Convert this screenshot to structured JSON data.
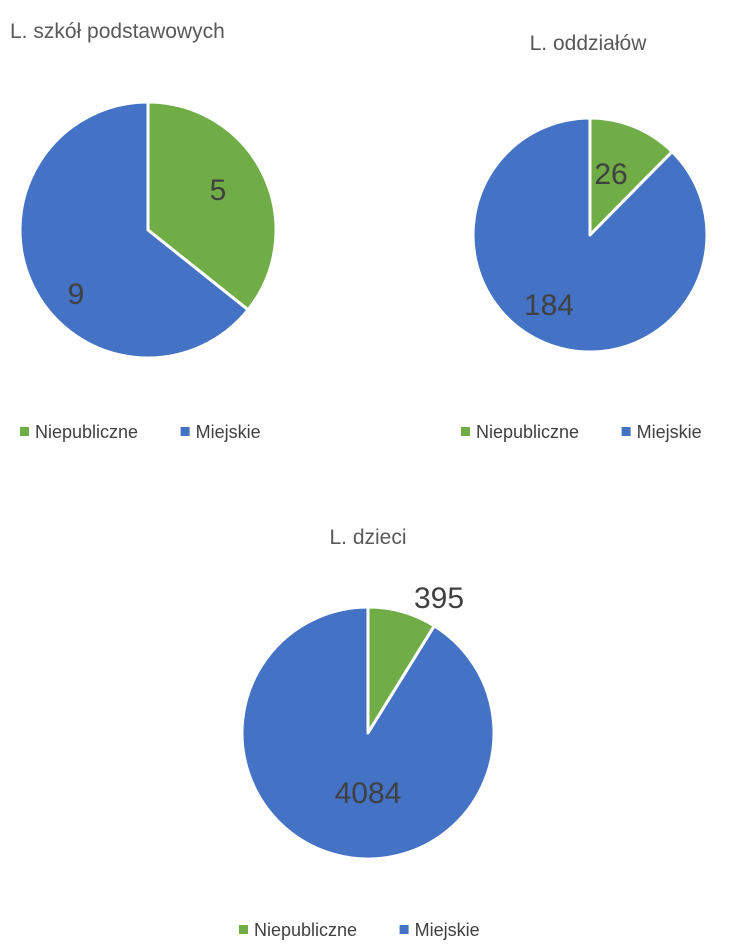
{
  "chart_data": [
    {
      "type": "pie",
      "title": "L. szkół podstawowych",
      "categories": [
        "Niepubliczne",
        "Miejskie"
      ],
      "values": [
        5,
        9
      ],
      "colors": [
        "#70AD47",
        "#4472C4"
      ],
      "legend": "bottom"
    },
    {
      "type": "pie",
      "title": "L. oddziałów",
      "categories": [
        "Niepubliczne",
        "Miejskie"
      ],
      "values": [
        26,
        184
      ],
      "colors": [
        "#70AD47",
        "#4472C4"
      ],
      "legend": "bottom"
    },
    {
      "type": "pie",
      "title": "L. dzieci",
      "categories": [
        "Niepubliczne",
        "Miejskie"
      ],
      "values": [
        395,
        4084
      ],
      "colors": [
        "#70AD47",
        "#4472C4"
      ],
      "legend": "bottom"
    }
  ]
}
